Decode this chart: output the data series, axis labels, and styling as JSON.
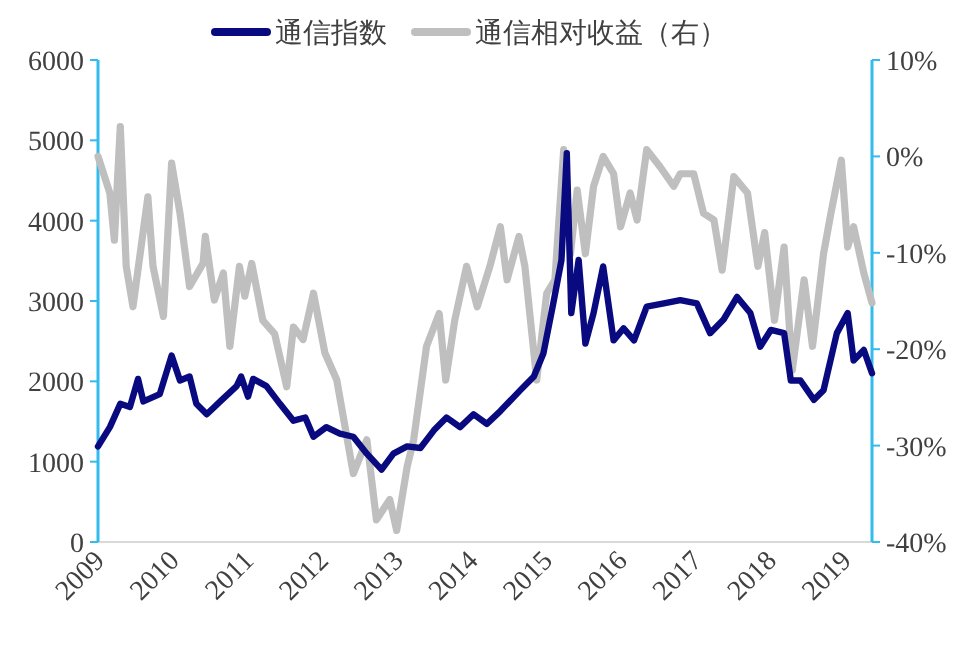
{
  "chart_data": {
    "type": "line",
    "legend": "top",
    "xlim": [
      "2009",
      "2019-05-15"
    ],
    "xticks": [
      "2009",
      "2010",
      "2011",
      "2012",
      "2013",
      "2014",
      "2015",
      "2016",
      "2017",
      "2018",
      "2019"
    ],
    "ylim": [
      0,
      6000
    ],
    "yticks": [
      0,
      1000,
      2000,
      3000,
      4000,
      5000,
      6000
    ],
    "y2lim": [
      -40,
      10
    ],
    "y2ticks": [
      {
        "value": -40,
        "label": "-40%"
      },
      {
        "value": -30,
        "label": "-30%"
      },
      {
        "value": -20,
        "label": "-20%"
      },
      {
        "value": -10,
        "label": "-10%"
      },
      {
        "value": 0,
        "label": "0%"
      },
      {
        "value": 10,
        "label": "10%"
      }
    ],
    "series": [
      {
        "name": "通信指数",
        "color": "#0a0a80",
        "x": [
          "2009-01-01",
          "2009-02-28",
          "2009-04-20",
          "2009-06-06",
          "2009-07-16",
          "2009-08-11",
          "2009-10-30",
          "2009-12-27",
          "2010-02-06",
          "2010-03-25",
          "2010-04-27",
          "2010-06-17",
          "2010-08-22",
          "2010-11-10",
          "2010-12-02",
          "2011-01-05",
          "2011-01-30",
          "2011-04-05",
          "2011-06-10",
          "2011-08-15",
          "2011-10-12",
          "2011-11-21",
          "2012-01-23",
          "2012-03-29",
          "2012-06-03",
          "2012-08-08",
          "2012-10-19",
          "2012-12-16",
          "2013-02-21",
          "2013-04-27",
          "2013-07-02",
          "2013-09-02",
          "2013-11-07",
          "2014-01-12",
          "2014-03-18",
          "2014-05-23",
          "2014-08-29",
          "2014-11-03",
          "2014-12-20",
          "2015-02-06",
          "2015-03-18",
          "2015-04-13",
          "2015-05-05",
          "2015-06-10",
          "2015-07-13",
          "2015-08-22",
          "2015-10-08",
          "2015-11-28",
          "2016-01-16",
          "2016-03-07",
          "2016-05-08",
          "2016-07-31",
          "2016-10-19",
          "2017-01-08",
          "2017-03-14",
          "2017-05-19",
          "2017-07-24",
          "2017-09-27",
          "2017-11-14",
          "2018-01-05",
          "2018-03-11",
          "2018-04-13",
          "2018-05-30",
          "2018-08-04",
          "2018-09-20",
          "2018-11-24",
          "2019-01-16",
          "2019-02-14",
          "2019-04-05",
          "2019-05-15"
        ],
        "values": [
          1190,
          1430,
          1720,
          1680,
          2030,
          1750,
          1840,
          2320,
          2010,
          2060,
          1720,
          1590,
          1750,
          1940,
          2060,
          1810,
          2030,
          1940,
          1720,
          1510,
          1550,
          1310,
          1430,
          1350,
          1310,
          1100,
          900,
          1100,
          1190,
          1170,
          1390,
          1550,
          1430,
          1590,
          1470,
          1630,
          1890,
          2060,
          2350,
          2970,
          3510,
          4840,
          2850,
          3510,
          2470,
          2850,
          3430,
          2510,
          2660,
          2510,
          2930,
          2970,
          3010,
          2970,
          2600,
          2770,
          3050,
          2850,
          2430,
          2640,
          2600,
          2010,
          2010,
          1770,
          1890,
          2600,
          2850,
          2260,
          2390,
          2100
        ]
      },
      {
        "name": "通信相对收益（右）",
        "color": "#bfbfbf",
        "axis": "y2",
        "x": [
          "2009-01-01",
          "2009-02-28",
          "2009-03-22",
          "2009-04-20",
          "2009-05-19",
          "2009-06-21",
          "2009-09-02",
          "2009-09-27",
          "2009-11-17",
          "2009-12-27",
          "2010-02-06",
          "2010-03-25",
          "2010-05-30",
          "2010-06-10",
          "2010-07-24",
          "2010-09-06",
          "2010-10-08",
          "2010-11-24",
          "2010-12-20",
          "2011-01-23",
          "2011-03-18",
          "2011-05-15",
          "2011-07-13",
          "2011-08-15",
          "2011-10-01",
          "2011-11-21",
          "2012-01-16",
          "2012-03-14",
          "2012-06-03",
          "2012-08-08",
          "2012-09-24",
          "2012-11-28",
          "2013-01-01",
          "2013-02-21",
          "2013-03-25",
          "2013-05-27",
          "2013-07-28",
          "2013-08-29",
          "2013-10-12",
          "2013-12-09",
          "2014-01-30",
          "2014-04-02",
          "2014-05-23",
          "2014-06-25",
          "2014-08-22",
          "2014-09-20",
          "2014-11-17",
          "2015-01-05",
          "2015-02-14",
          "2015-03-29",
          "2015-05-01",
          "2015-06-03",
          "2015-07-13",
          "2015-08-22",
          "2015-10-08",
          "2015-11-28",
          "2016-01-01",
          "2016-02-17",
          "2016-03-22",
          "2016-05-08",
          "2016-07-13",
          "2016-09-17",
          "2016-10-19",
          "2016-12-24",
          "2017-02-10",
          "2017-04-02",
          "2017-05-12",
          "2017-07-08",
          "2017-09-13",
          "2017-11-03",
          "2017-12-06",
          "2018-01-23",
          "2018-03-11",
          "2018-04-20",
          "2018-06-17",
          "2018-07-28",
          "2018-09-20",
          "2018-10-26",
          "2018-12-16",
          "2019-01-16",
          "2019-02-14",
          "2019-04-05",
          "2019-05-15"
        ],
        "values": [
          0.0,
          -3.8,
          -8.7,
          3.1,
          -11.4,
          -15.6,
          -4.2,
          -11.4,
          -16.6,
          -0.7,
          -5.9,
          -13.5,
          -11.1,
          -8.3,
          -14.9,
          -12.1,
          -19.7,
          -11.4,
          -14.5,
          -11.1,
          -17.0,
          -18.4,
          -23.9,
          -17.7,
          -19.0,
          -14.2,
          -20.4,
          -23.2,
          -32.9,
          -29.4,
          -37.7,
          -35.6,
          -38.8,
          -32.2,
          -29.4,
          -19.7,
          -16.3,
          -23.2,
          -17.0,
          -11.4,
          -15.6,
          -11.4,
          -7.3,
          -12.8,
          -8.3,
          -11.4,
          -23.2,
          -14.2,
          -12.8,
          0.7,
          -10.1,
          -3.5,
          -10.1,
          -3.1,
          0.0,
          -1.8,
          -7.3,
          -3.8,
          -6.6,
          0.7,
          -1.1,
          -3.1,
          -1.8,
          -1.8,
          -5.9,
          -6.6,
          -11.8,
          -2.1,
          -3.8,
          -11.4,
          -7.9,
          -17.0,
          -9.4,
          -22.2,
          -12.8,
          -19.7,
          -10.1,
          -5.9,
          -0.4,
          -9.4,
          -7.3,
          -12.1,
          -15.2
        ]
      }
    ]
  }
}
